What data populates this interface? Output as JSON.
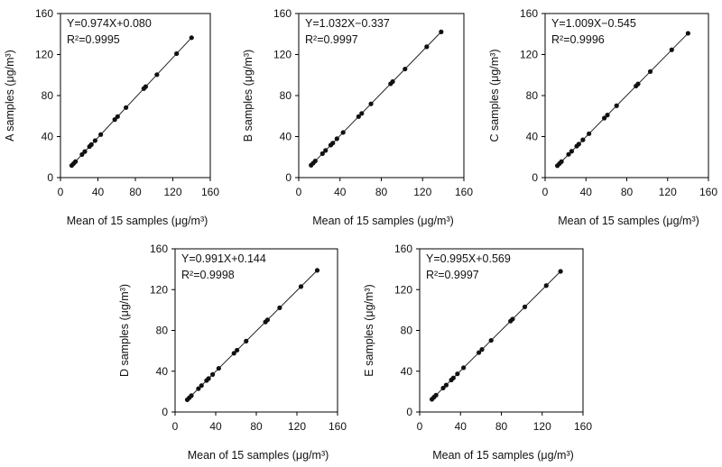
{
  "chart_data": [
    {
      "type": "scatter",
      "panel": "A",
      "xlabel": "Mean of 15 samples (μg/m³)",
      "ylabel": "A samples (μg/m³)",
      "equation": "Y=0.974X+0.080",
      "r2": "R²=0.9995",
      "xlim": [
        0,
        160
      ],
      "ylim": [
        0,
        160
      ],
      "xticks": [
        0,
        40,
        80,
        120,
        160
      ],
      "yticks": [
        0,
        40,
        80,
        120,
        160
      ],
      "fit": {
        "slope": 0.974,
        "intercept": 0.08
      },
      "x": [
        12,
        14,
        16,
        23,
        26,
        31,
        33,
        37,
        43,
        58,
        61,
        70,
        89,
        91,
        103,
        124,
        140
      ],
      "y": [
        11.8,
        13.7,
        15.6,
        22.5,
        25.4,
        30.3,
        32.2,
        36.1,
        42,
        56.6,
        59.5,
        68.3,
        86.8,
        88.7,
        100.4,
        120.9,
        136.4
      ]
    },
    {
      "type": "scatter",
      "panel": "B",
      "xlabel": "Mean of 15 samples (μg/m³)",
      "ylabel": "B samples (μg/m³)",
      "equation": "Y=1.032X−0.337",
      "r2": "R²=0.9997",
      "xlim": [
        0,
        160
      ],
      "ylim": [
        0,
        160
      ],
      "xticks": [
        0,
        40,
        80,
        120,
        160
      ],
      "yticks": [
        0,
        40,
        80,
        120,
        160
      ],
      "fit": {
        "slope": 1.032,
        "intercept": -0.337
      },
      "x": [
        12,
        14,
        16,
        23,
        26,
        31,
        33,
        37,
        43,
        58,
        61,
        70,
        89,
        91,
        103,
        124,
        138
      ],
      "y": [
        12.1,
        14.1,
        16.2,
        23.4,
        26.5,
        31.7,
        33.7,
        37.9,
        44,
        59.5,
        62.6,
        71.9,
        91.5,
        93.6,
        105.9,
        127.6,
        142.1
      ]
    },
    {
      "type": "scatter",
      "panel": "C",
      "xlabel": "Mean of 15 samples (μg/m³)",
      "ylabel": "C samples (μg/m³)",
      "equation": "Y=1.009X−0.545",
      "r2": "R²=0.9996",
      "xlim": [
        0,
        160
      ],
      "ylim": [
        0,
        160
      ],
      "xticks": [
        0,
        40,
        80,
        120,
        160
      ],
      "yticks": [
        0,
        40,
        80,
        120,
        160
      ],
      "fit": {
        "slope": 1.009,
        "intercept": -0.545
      },
      "x": [
        12,
        14,
        16,
        23,
        26,
        31,
        33,
        37,
        43,
        58,
        61,
        70,
        89,
        91,
        103,
        124,
        140
      ],
      "y": [
        11.6,
        13.6,
        15.6,
        22.7,
        25.7,
        30.7,
        32.7,
        36.8,
        42.8,
        58,
        61,
        70.1,
        89.3,
        91.3,
        103.4,
        124.6,
        140.7
      ]
    },
    {
      "type": "scatter",
      "panel": "D",
      "xlabel": "Mean of 15 samples (μg/m³)",
      "ylabel": "D samples (μg/m³)",
      "equation": "Y=0.991X+0.144",
      "r2": "R²=0.9998",
      "xlim": [
        0,
        160
      ],
      "ylim": [
        0,
        160
      ],
      "xticks": [
        0,
        40,
        80,
        120,
        160
      ],
      "yticks": [
        0,
        40,
        80,
        120,
        160
      ],
      "fit": {
        "slope": 0.991,
        "intercept": 0.144
      },
      "x": [
        12,
        14,
        16,
        23,
        26,
        31,
        33,
        37,
        43,
        58,
        61,
        70,
        89,
        91,
        103,
        124,
        140
      ],
      "y": [
        12,
        14,
        16,
        22.9,
        25.9,
        30.9,
        32.8,
        36.8,
        42.8,
        57.6,
        60.6,
        69.5,
        88.3,
        90.3,
        102.2,
        123,
        138.9
      ]
    },
    {
      "type": "scatter",
      "panel": "E",
      "xlabel": "Mean of 15 samples (μg/m³)",
      "ylabel": "E samples (μg/m³)",
      "equation": "Y=0.995X+0.569",
      "r2": "R²=0.9997",
      "xlim": [
        0,
        160
      ],
      "ylim": [
        0,
        160
      ],
      "xticks": [
        0,
        40,
        80,
        120,
        160
      ],
      "yticks": [
        0,
        40,
        80,
        120,
        160
      ],
      "fit": {
        "slope": 0.995,
        "intercept": 0.569
      },
      "x": [
        12,
        14,
        16,
        23,
        26,
        31,
        33,
        37,
        43,
        58,
        61,
        70,
        89,
        91,
        103,
        124,
        138
      ],
      "y": [
        12.5,
        14.5,
        16.5,
        23.5,
        26.4,
        31.4,
        33.4,
        37.4,
        43.4,
        58.3,
        61.3,
        70.2,
        89.1,
        91.1,
        103.1,
        124,
        137.9
      ]
    }
  ]
}
